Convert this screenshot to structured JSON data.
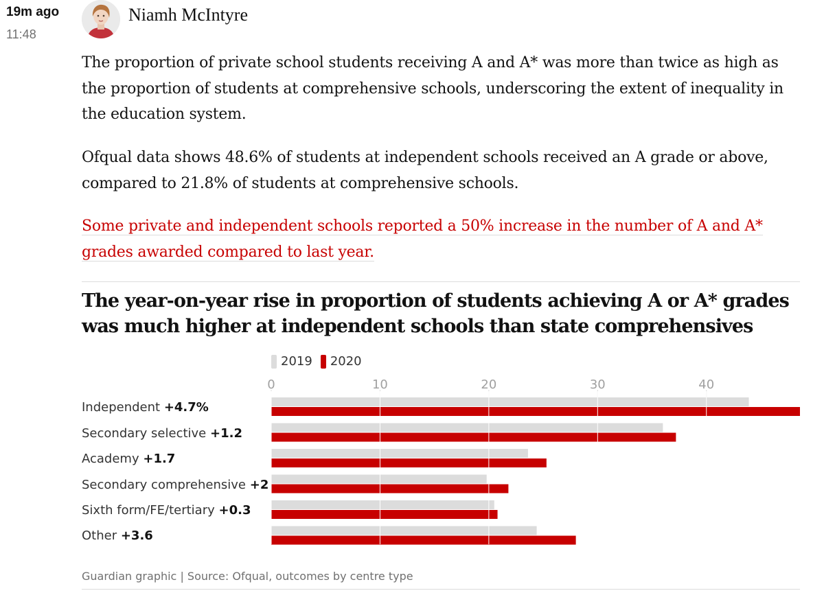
{
  "post": {
    "relative_time": "19m ago",
    "time": "11:48",
    "author": "Niamh McIntyre",
    "paragraphs": [
      "The proportion of private school students receiving A and A* was more than twice as high as the proportion of students at comprehensive schools, underscoring the extent of inequality in the education system.",
      "Ofqual data shows 48.6% of students at independent schools received an A grade or above, compared to 21.8% of students at comprehensive schools."
    ],
    "link_text": "Some private and independent schools reported a 50% increase in the number of A and A* grades awarded compared to last year."
  },
  "chart": {
    "title": "The year-on-year rise in proportion of students achieving A or A* grades was much higher at independent schools than state comprehensives",
    "source": "Guardian graphic | Source: Ofqual, outcomes by centre type",
    "rows": [
      {
        "name": "Independent",
        "change": "+4.7%"
      },
      {
        "name": "Secondary selective",
        "change": "+1.2"
      },
      {
        "name": "Academy",
        "change": "+1.7"
      },
      {
        "name": "Secondary comprehensive",
        "change": "+2"
      },
      {
        "name": "Sixth form/FE/tertiary",
        "change": "+0.3"
      },
      {
        "name": "Other",
        "change": "+3.6"
      }
    ]
  },
  "chart_data": {
    "type": "bar",
    "orientation": "horizontal",
    "categories": [
      "Independent",
      "Secondary selective",
      "Academy",
      "Secondary comprehensive",
      "Sixth form/FE/tertiary",
      "Other"
    ],
    "series": [
      {
        "name": "2019",
        "color": "#dcdcdc",
        "values": [
          43.9,
          36.0,
          23.6,
          19.8,
          20.5,
          24.4
        ]
      },
      {
        "name": "2020",
        "color": "#c70000",
        "values": [
          48.6,
          37.2,
          25.3,
          21.8,
          20.8,
          28.0
        ]
      }
    ],
    "xlim": [
      0,
      48.6
    ],
    "xticks": [
      0,
      10,
      20,
      30,
      40
    ],
    "grid": true,
    "legend_position": "top-left"
  },
  "colors": {
    "accent_red": "#c70000",
    "bar_2019": "#dcdcdc",
    "text": "#121212",
    "muted": "#707070"
  }
}
